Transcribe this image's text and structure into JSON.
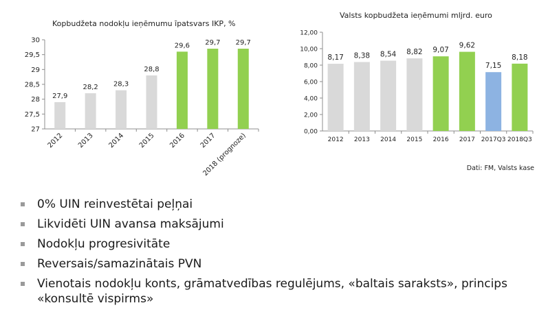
{
  "chart_data": [
    {
      "type": "bar",
      "title": "Kopbudžeta nodokļu ieņēmumu īpatsvars IKP, %",
      "categories": [
        "2012",
        "2013",
        "2014",
        "2015",
        "2016",
        "2017",
        "2018 (prognoze)"
      ],
      "values": [
        27.9,
        28.2,
        28.3,
        28.8,
        29.6,
        29.7,
        29.7
      ],
      "value_labels": [
        "27,9",
        "28,2",
        "28,3",
        "28,8",
        "29,6",
        "29,7",
        "29,7"
      ],
      "bar_colors": [
        "#d9d9d9",
        "#d9d9d9",
        "#d9d9d9",
        "#d9d9d9",
        "#92d050",
        "#92d050",
        "#92d050"
      ],
      "ylim": [
        27,
        30
      ],
      "yticks": [
        27,
        27.5,
        28,
        28.5,
        29,
        29.5,
        30
      ],
      "ytick_labels": [
        "27",
        "27,5",
        "28",
        "28,5",
        "29",
        "29,5",
        "30"
      ],
      "xlabel": "",
      "ylabel": "",
      "grid": false,
      "legend": "none"
    },
    {
      "type": "bar",
      "title": "Valsts kopbudžeta ieņēmumi mljrd. euro",
      "categories": [
        "2012",
        "2013",
        "2014",
        "2015",
        "2016",
        "2017",
        "2017Q3",
        "2018Q3"
      ],
      "values": [
        8.17,
        8.38,
        8.54,
        8.82,
        9.07,
        9.62,
        7.15,
        8.18
      ],
      "value_labels": [
        "8,17",
        "8,38",
        "8,54",
        "8,82",
        "9,07",
        "9,62",
        "7,15",
        "8,18"
      ],
      "bar_colors": [
        "#d9d9d9",
        "#d9d9d9",
        "#d9d9d9",
        "#d9d9d9",
        "#92d050",
        "#92d050",
        "#8db3e2",
        "#92d050"
      ],
      "ylim": [
        0,
        12
      ],
      "yticks": [
        0,
        2,
        4,
        6,
        8,
        10,
        12
      ],
      "ytick_labels": [
        "0,00",
        "2,00",
        "4,00",
        "6,00",
        "8,00",
        "10,00",
        "12,00"
      ],
      "xlabel": "",
      "ylabel": "",
      "grid": false,
      "legend": "none"
    }
  ],
  "source_note": "Dati: FM, Valsts kase",
  "bullets": [
    "0% UIN reinvestētai peļņai",
    "Likvidēti UIN avansa maksājumi",
    "Nodokļu progresivitāte",
    "Reversais/samazinātais PVN",
    "Vienotais nodokļu konts, grāmatvedības regulējums, «baltais saraksts», princips «konsultē vispirms»"
  ]
}
